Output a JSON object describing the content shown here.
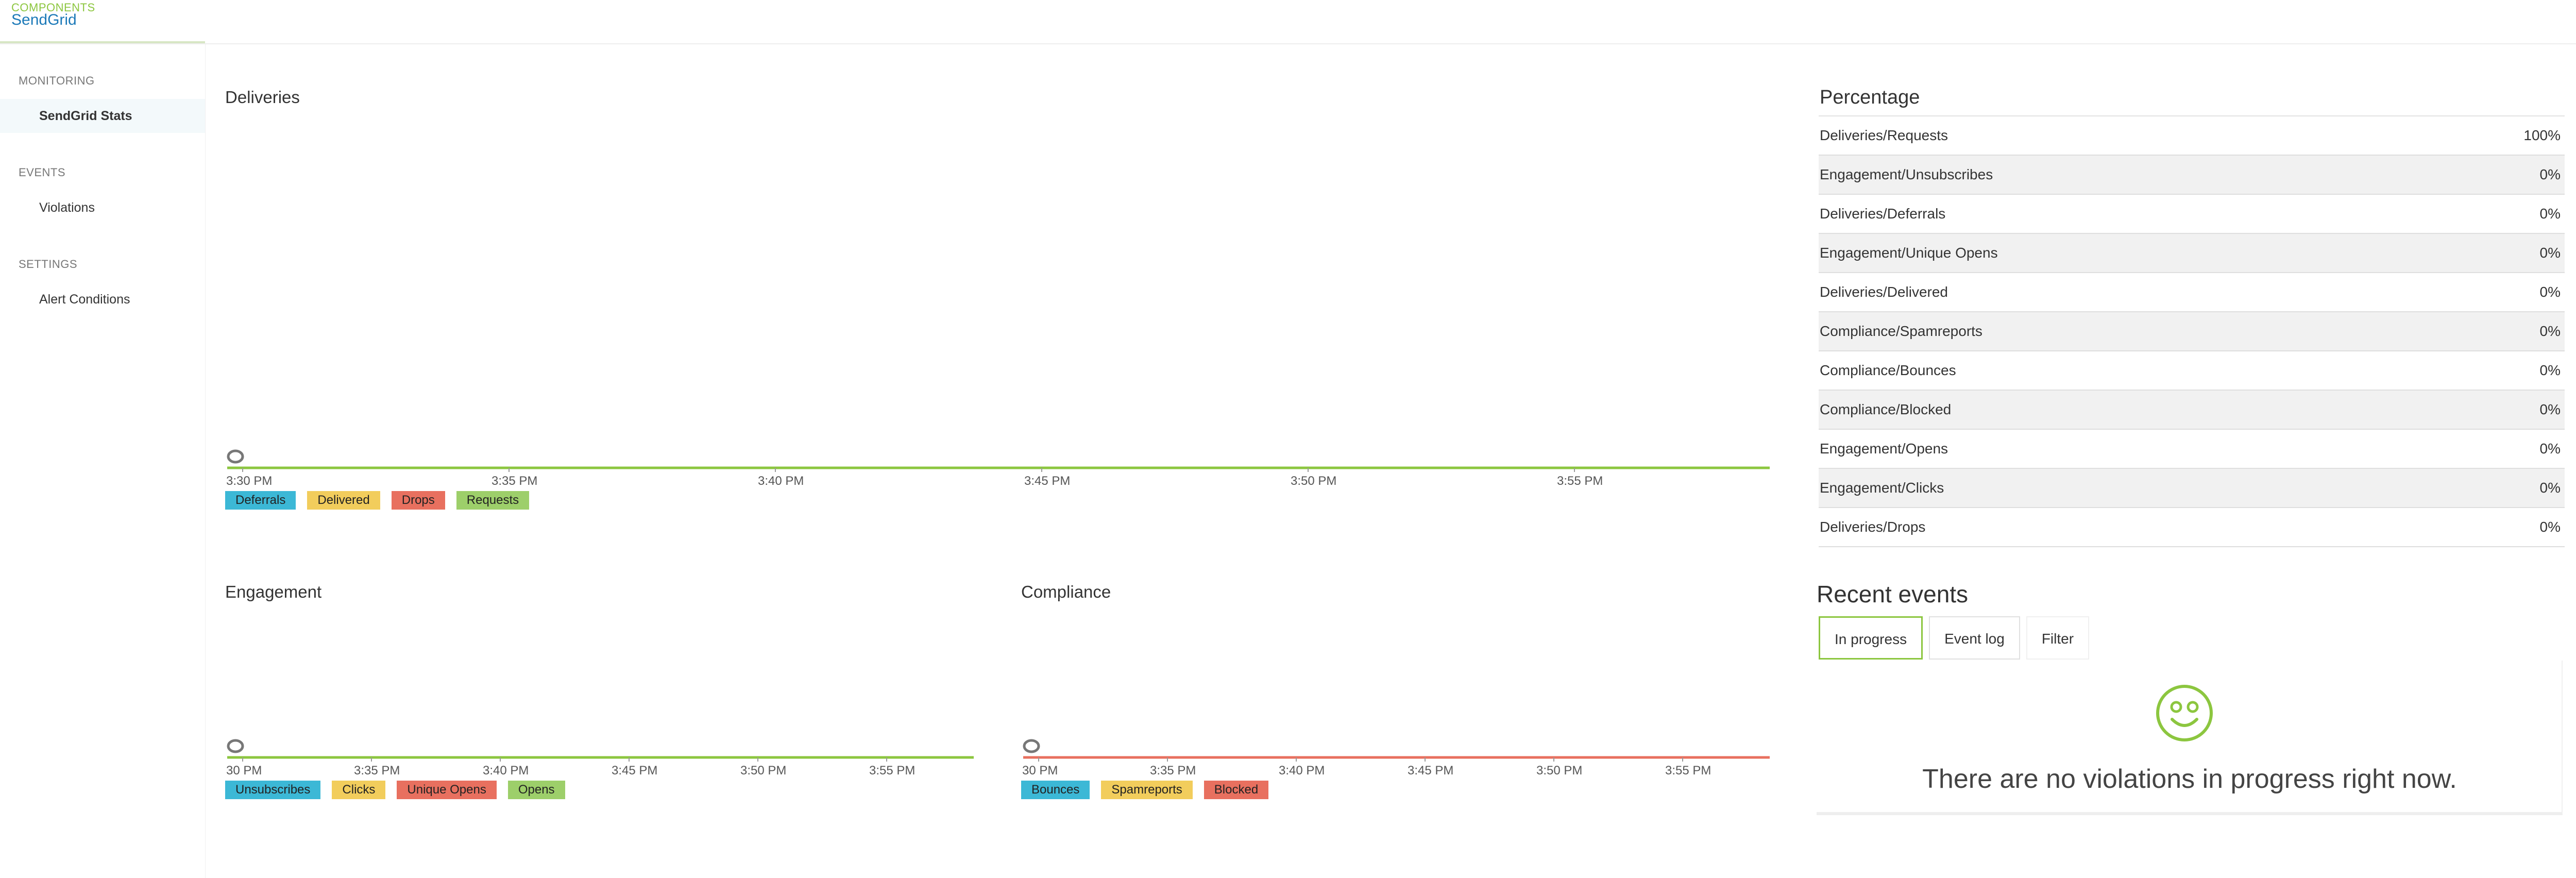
{
  "header": {
    "supertitle": "COMPONENTS",
    "app_name": "SendGrid"
  },
  "sidebar": {
    "sections": [
      {
        "heading": "MONITORING",
        "items": [
          {
            "label": "SendGrid Stats",
            "active": true
          }
        ]
      },
      {
        "heading": "EVENTS",
        "items": [
          {
            "label": "Violations",
            "active": false
          }
        ]
      },
      {
        "heading": "SETTINGS",
        "items": [
          {
            "label": "Alert Conditions",
            "active": false
          }
        ]
      }
    ]
  },
  "charts": {
    "deliveries": {
      "title": "Deliveries",
      "chart_data": {
        "type": "line",
        "ticks": [
          "3:30 PM",
          "3:35 PM",
          "3:40 PM",
          "3:45 PM",
          "3:50 PM",
          "3:55 PM"
        ],
        "series": [
          {
            "name": "Deferrals",
            "color": "#3cb8d6",
            "values": [
              0,
              0,
              0,
              0,
              0,
              0
            ]
          },
          {
            "name": "Delivered",
            "color": "#f2cd5c",
            "values": [
              0,
              0,
              0,
              0,
              0,
              0
            ]
          },
          {
            "name": "Drops",
            "color": "#e8705f",
            "values": [
              0,
              0,
              0,
              0,
              0,
              0
            ]
          },
          {
            "name": "Requests",
            "color": "#9dcf6a",
            "values": [
              0,
              0,
              0,
              0,
              0,
              0
            ]
          }
        ],
        "line_color": "#8cc63f"
      }
    },
    "engagement": {
      "title": "Engagement",
      "chart_data": {
        "type": "line",
        "ticks": [
          "30 PM",
          "3:35 PM",
          "3:40 PM",
          "3:45 PM",
          "3:50 PM",
          "3:55 PM"
        ],
        "series": [
          {
            "name": "Unsubscribes",
            "color": "#3cb8d6",
            "values": [
              0,
              0,
              0,
              0,
              0,
              0
            ]
          },
          {
            "name": "Clicks",
            "color": "#f2cd5c",
            "values": [
              0,
              0,
              0,
              0,
              0,
              0
            ]
          },
          {
            "name": "Unique Opens",
            "color": "#e8705f",
            "values": [
              0,
              0,
              0,
              0,
              0,
              0
            ]
          },
          {
            "name": "Opens",
            "color": "#9dcf6a",
            "values": [
              0,
              0,
              0,
              0,
              0,
              0
            ]
          }
        ],
        "line_color": "#8cc63f"
      }
    },
    "compliance": {
      "title": "Compliance",
      "chart_data": {
        "type": "line",
        "ticks": [
          "30 PM",
          "3:35 PM",
          "3:40 PM",
          "3:45 PM",
          "3:50 PM",
          "3:55 PM"
        ],
        "series": [
          {
            "name": "Bounces",
            "color": "#3cb8d6",
            "values": [
              0,
              0,
              0,
              0,
              0,
              0
            ]
          },
          {
            "name": "Spamreports",
            "color": "#f2cd5c",
            "values": [
              0,
              0,
              0,
              0,
              0,
              0
            ]
          },
          {
            "name": "Blocked",
            "color": "#e8705f",
            "values": [
              0,
              0,
              0,
              0,
              0,
              0
            ]
          }
        ],
        "line_color": "#e8705f"
      }
    }
  },
  "percentage": {
    "title": "Percentage",
    "rows": [
      {
        "label": "Deliveries/Requests",
        "value": "100%"
      },
      {
        "label": "Engagement/Unsubscribes",
        "value": "0%"
      },
      {
        "label": "Deliveries/Deferrals",
        "value": "0%"
      },
      {
        "label": "Engagement/Unique Opens",
        "value": "0%"
      },
      {
        "label": "Deliveries/Delivered",
        "value": "0%"
      },
      {
        "label": "Compliance/Spamreports",
        "value": "0%"
      },
      {
        "label": "Compliance/Bounces",
        "value": "0%"
      },
      {
        "label": "Compliance/Blocked",
        "value": "0%"
      },
      {
        "label": "Engagement/Opens",
        "value": "0%"
      },
      {
        "label": "Engagement/Clicks",
        "value": "0%"
      },
      {
        "label": "Deliveries/Drops",
        "value": "0%"
      }
    ]
  },
  "recent_events": {
    "title": "Recent events",
    "tabs": [
      "In progress",
      "Event log",
      "Filter"
    ],
    "message": "There are no violations in progress right now.",
    "icon": "smiley-icon",
    "accent": "#8cc63f"
  }
}
